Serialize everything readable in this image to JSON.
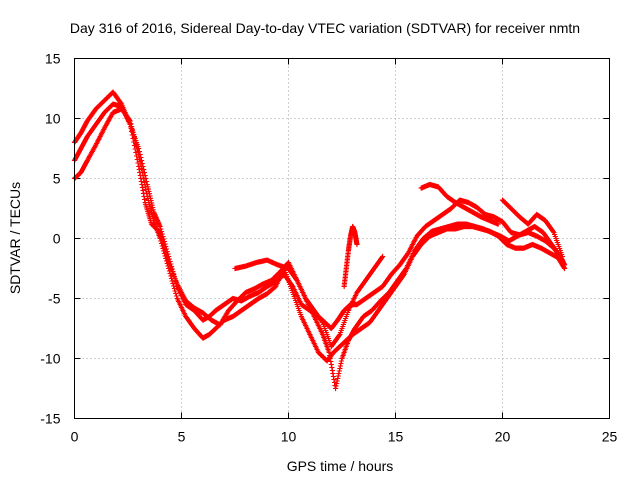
{
  "chart_data": {
    "type": "scatter",
    "title": "Day 316 of 2016, Sidereal Day-to-day VTEC variation (SDTVAR) for receiver nmtn",
    "xlabel": "GPS time / hours",
    "ylabel": "SDTVAR / TECUs",
    "xlim": [
      0,
      25
    ],
    "ylim": [
      -15,
      15
    ],
    "xticks": [
      "0",
      "5",
      "10",
      "15",
      "20",
      "25"
    ],
    "yticks": [
      "-15",
      "-10",
      "-5",
      "0",
      "5",
      "10",
      "15"
    ],
    "grid": true,
    "marker": "plus",
    "color": "#ff0000",
    "series": [
      {
        "x": [
          0.0,
          0.3,
          0.6,
          1.0,
          1.4,
          1.8,
          2.2,
          2.6,
          3.0,
          3.4,
          3.7,
          4.0,
          4.4,
          4.8,
          5.2,
          5.6,
          6.0,
          6.3,
          6.6,
          7.0,
          7.4,
          7.8,
          8.2,
          8.6,
          9.0,
          9.4,
          9.8,
          10.2,
          10.6,
          11.0,
          11.4,
          11.7,
          12.0,
          12.3,
          12.6,
          12.9,
          13.2,
          13.6,
          14.0,
          14.4,
          14.8,
          15.2,
          15.6,
          16.0,
          16.4,
          16.8,
          17.2,
          17.6,
          18.0,
          18.4,
          18.8,
          19.2,
          19.6,
          20.0,
          20.4,
          20.8,
          21.2,
          21.6,
          22.0,
          22.4,
          22.8
        ],
        "y": [
          8.0,
          8.8,
          9.8,
          10.8,
          11.5,
          12.2,
          11.2,
          9.5,
          7.5,
          4.5,
          2.2,
          1.0,
          -1.5,
          -4.0,
          -5.5,
          -6.0,
          -6.8,
          -6.5,
          -6.0,
          -5.5,
          -5.0,
          -5.2,
          -4.8,
          -4.5,
          -4.0,
          -3.6,
          -3.0,
          -4.0,
          -5.5,
          -6.0,
          -6.5,
          -7.0,
          -7.5,
          -6.8,
          -6.0,
          -5.5,
          -5.5,
          -5.0,
          -4.5,
          -4.0,
          -3.0,
          -2.2,
          -1.2,
          0.2,
          1.0,
          1.5,
          2.0,
          2.5,
          3.2,
          3.0,
          2.6,
          2.0,
          1.8,
          1.4,
          0.5,
          0.3,
          0.5,
          0.2,
          -0.2,
          -0.8,
          -1.8
        ]
      },
      {
        "x": [
          0.0,
          0.3,
          0.6,
          1.0,
          1.4,
          1.8,
          2.2,
          2.6,
          3.0,
          3.4,
          3.7,
          4.0,
          4.4,
          4.8,
          5.2,
          5.6,
          6.0,
          6.3,
          6.6,
          7.0,
          7.4,
          7.8,
          8.2,
          8.6,
          9.0,
          9.4,
          9.8,
          10.2,
          10.6,
          11.0,
          11.4,
          11.8,
          12.1,
          12.4,
          12.7,
          13.0,
          13.4,
          13.8,
          14.2,
          14.6,
          15.0,
          15.4,
          15.8,
          16.2,
          16.6,
          17.0,
          17.4,
          17.8,
          18.2,
          18.6,
          19.0,
          19.4,
          19.8,
          20.2,
          20.6,
          21.0,
          21.4,
          21.8,
          22.2,
          22.6,
          22.9
        ],
        "y": [
          5.0,
          5.5,
          6.5,
          7.8,
          9.2,
          10.5,
          10.8,
          9.8,
          7.0,
          3.5,
          1.5,
          0.0,
          -2.5,
          -5.0,
          -6.5,
          -7.5,
          -8.3,
          -8.0,
          -7.5,
          -6.8,
          -6.5,
          -6.0,
          -5.5,
          -5.0,
          -4.6,
          -4.0,
          -2.5,
          -4.5,
          -6.5,
          -8.0,
          -9.5,
          -10.2,
          -9.5,
          -9.0,
          -8.5,
          -8.0,
          -7.5,
          -7.0,
          -6.0,
          -5.0,
          -4.0,
          -3.0,
          -1.5,
          -0.5,
          0.2,
          0.5,
          0.8,
          0.8,
          1.0,
          1.0,
          0.8,
          0.6,
          0.2,
          -0.5,
          -0.8,
          -0.8,
          -0.5,
          -0.8,
          -1.2,
          -1.6,
          -2.5
        ]
      },
      {
        "x": [
          0.0,
          0.3,
          0.6,
          1.0,
          1.4,
          1.8,
          2.2,
          2.6,
          3.0,
          3.3,
          3.6,
          4.0,
          4.4,
          4.8,
          5.2,
          5.6,
          6.0,
          6.4,
          6.8,
          7.2,
          7.6,
          8.0,
          8.4,
          8.8,
          9.2,
          9.6,
          10.0,
          10.4,
          10.8,
          11.2,
          11.6,
          11.9,
          12.2,
          12.5,
          12.8,
          13.1,
          13.5,
          13.9,
          14.3,
          14.7,
          15.1,
          15.5,
          15.9,
          16.3,
          16.7,
          17.1,
          17.5,
          17.9,
          18.3,
          18.7,
          19.1,
          19.5,
          19.9,
          20.3,
          20.7,
          21.1,
          21.5,
          21.9,
          22.3,
          22.7,
          22.9
        ],
        "y": [
          6.5,
          7.5,
          8.5,
          9.5,
          10.5,
          11.2,
          11.0,
          9.5,
          6.0,
          3.0,
          1.2,
          0.5,
          -2.0,
          -3.8,
          -5.2,
          -5.8,
          -6.2,
          -6.8,
          -7.2,
          -6.0,
          -5.2,
          -4.5,
          -4.2,
          -3.8,
          -3.5,
          -2.8,
          -2.0,
          -3.5,
          -5.0,
          -6.5,
          -8.0,
          -9.5,
          -12.5,
          -10.0,
          -8.5,
          -7.5,
          -6.5,
          -6.0,
          -5.2,
          -4.5,
          -3.5,
          -2.5,
          -1.0,
          0.0,
          0.6,
          0.8,
          1.0,
          1.2,
          1.2,
          1.0,
          0.8,
          0.5,
          0.2,
          -0.2,
          0.2,
          0.6,
          1.0,
          0.5,
          -0.5,
          -1.5,
          -2.2
        ]
      },
      {
        "x": [
          7.5,
          8.0,
          8.5,
          9.0,
          9.5,
          10.0,
          10.4,
          10.8,
          11.2,
          11.6,
          12.0,
          12.4,
          12.8,
          13.2,
          13.6,
          14.0,
          14.4
        ],
        "y": [
          -2.5,
          -2.3,
          -2.0,
          -1.8,
          -2.2,
          -2.5,
          -3.5,
          -5.0,
          -6.0,
          -7.0,
          -9.0,
          -8.0,
          -6.0,
          -4.5,
          -3.5,
          -2.5,
          -1.5
        ]
      },
      {
        "x": [
          12.6,
          12.7,
          12.8,
          12.9,
          13.0,
          13.1,
          13.2
        ],
        "y": [
          -4.0,
          -2.5,
          -1.0,
          0.2,
          1.0,
          0.5,
          -0.5
        ]
      },
      {
        "x": [
          16.2,
          16.6,
          17.0,
          17.4,
          17.8,
          18.2,
          18.6,
          19.0,
          19.4,
          19.8
        ],
        "y": [
          4.2,
          4.5,
          4.3,
          3.5,
          3.0,
          2.6,
          2.2,
          1.8,
          1.5,
          1.2
        ]
      },
      {
        "x": [
          20.0,
          20.4,
          20.8,
          21.2,
          21.6,
          22.0,
          22.4,
          22.8
        ],
        "y": [
          3.2,
          2.5,
          1.8,
          1.2,
          2.0,
          1.5,
          0.5,
          -1.5
        ]
      }
    ]
  }
}
